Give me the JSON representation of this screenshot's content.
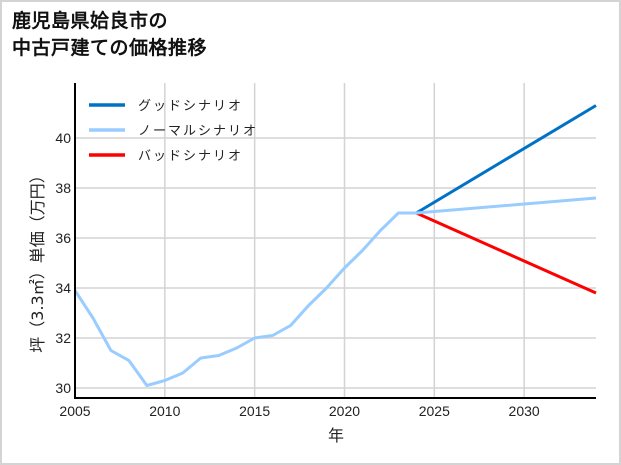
{
  "title": {
    "line1": "鹿児島県姶良市の",
    "line2": "中古戸建ての価格推移"
  },
  "colors": {
    "good": "#0072c6",
    "normal": "#99ccff",
    "bad": "#ff0000",
    "grid": "#d3d3d3",
    "axis": "#000000"
  },
  "legend": [
    {
      "label": "グッドシナリオ",
      "color": "#0072c6"
    },
    {
      "label": "ノーマルシナリオ",
      "color": "#99ccff"
    },
    {
      "label": "バッドシナリオ",
      "color": "#ff0000"
    }
  ],
  "chart_data": {
    "type": "line",
    "title": "鹿児島県姶良市の中古戸建ての価格推移",
    "xlabel": "年",
    "ylabel": "坪（3.3㎡）単価（万円）",
    "xlim": [
      2005,
      2034
    ],
    "ylim": [
      29.6,
      42.2
    ],
    "xticks": [
      2005,
      2010,
      2015,
      2020,
      2025,
      2030
    ],
    "yticks": [
      30,
      32,
      34,
      36,
      38,
      40
    ],
    "grid": true,
    "legend_position": "upper left",
    "series": [
      {
        "name": "ノーマルシナリオ",
        "color": "#99ccff",
        "x": [
          2005,
          2006,
          2007,
          2008,
          2009,
          2010,
          2011,
          2012,
          2013,
          2014,
          2015,
          2016,
          2017,
          2018,
          2019,
          2020,
          2021,
          2022,
          2023,
          2024,
          2034
        ],
        "y": [
          33.9,
          32.8,
          31.5,
          31.1,
          30.1,
          30.3,
          30.6,
          31.2,
          31.3,
          31.6,
          32.0,
          32.1,
          32.5,
          33.3,
          34.0,
          34.8,
          35.5,
          36.3,
          37.0,
          37.0,
          37.6
        ]
      },
      {
        "name": "グッドシナリオ",
        "color": "#0072c6",
        "x": [
          2024,
          2034
        ],
        "y": [
          37.0,
          41.3
        ]
      },
      {
        "name": "バッドシナリオ",
        "color": "#ff0000",
        "x": [
          2024,
          2034
        ],
        "y": [
          37.0,
          33.8
        ]
      }
    ]
  }
}
